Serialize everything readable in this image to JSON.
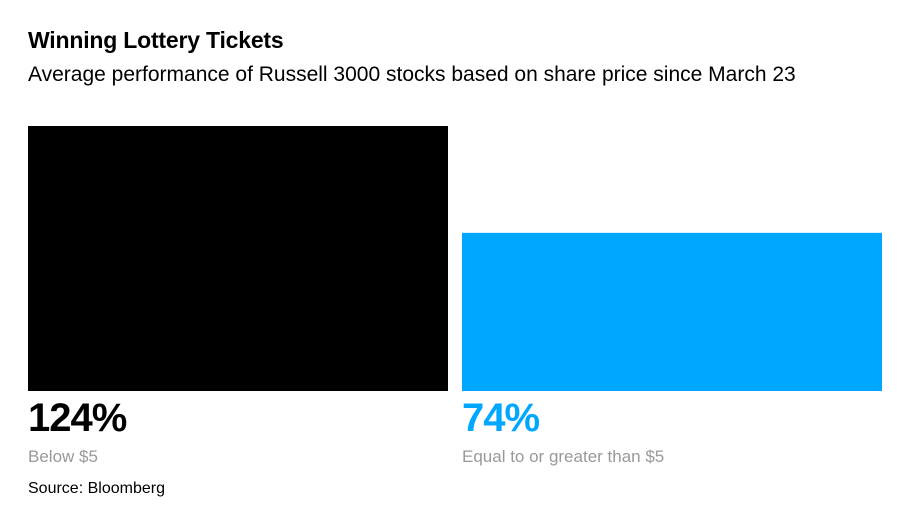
{
  "chart_data": {
    "type": "bar",
    "title": "Winning Lottery Tickets",
    "subtitle": "Average performance of Russell 3000 stocks based on share price since March 23",
    "categories": [
      "Below $5",
      "Equal to or greater than $5"
    ],
    "values": [
      124,
      74
    ],
    "value_labels": [
      "124%",
      "74%"
    ],
    "colors": [
      "#000000",
      "#00a7ff"
    ],
    "label_color": "#999999",
    "unit": "%",
    "ylim": [
      0,
      124
    ],
    "grid": false,
    "xlabel": "",
    "ylabel": ""
  },
  "footer": {
    "source": "Source: Bloomberg"
  }
}
